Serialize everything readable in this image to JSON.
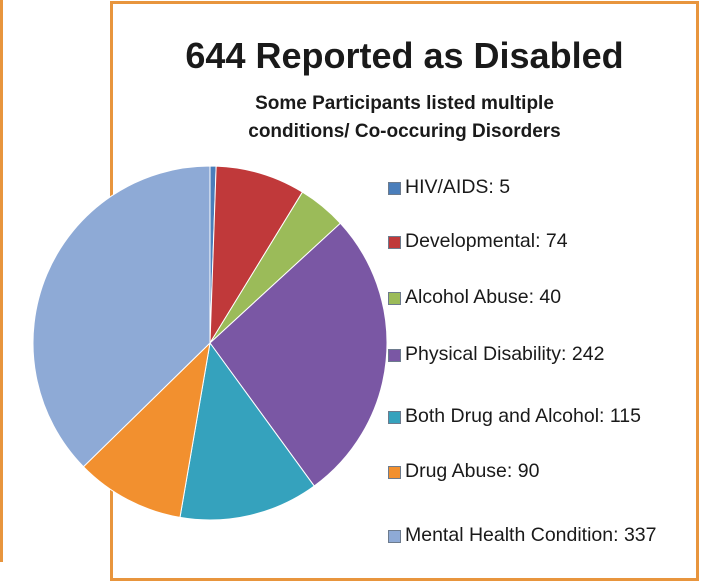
{
  "chart_data": {
    "type": "pie",
    "title": "644 Reported as Disabled",
    "subtitle_lines": [
      "Some Participants listed multiple",
      "conditions/ Co-occuring Disorders"
    ],
    "legend_position": "right",
    "slices": [
      {
        "label": "HIV/AIDS: 5",
        "name": "HIV/AIDS",
        "value": 5,
        "color": "#4a7ebb"
      },
      {
        "label": "Developmental: 74",
        "name": "Developmental",
        "value": 74,
        "color": "#c0393a"
      },
      {
        "label": "Alcohol Abuse: 40",
        "name": "Alcohol Abuse",
        "value": 40,
        "color": "#9bbb59"
      },
      {
        "label": "Physical Disability: 242",
        "name": "Physical Disability",
        "value": 242,
        "color": "#7a57a4"
      },
      {
        "label": "Both Drug and Alcohol: 115",
        "name": "Both Drug and Alcohol",
        "value": 115,
        "color": "#35a2bd"
      },
      {
        "label": "Drug Abuse: 90",
        "name": "Drug Abuse",
        "value": 90,
        "color": "#f2902f"
      },
      {
        "label": "Mental Health Condition: 337",
        "name": "Mental Health Condition",
        "value": 337,
        "color": "#8eaad6"
      }
    ]
  }
}
